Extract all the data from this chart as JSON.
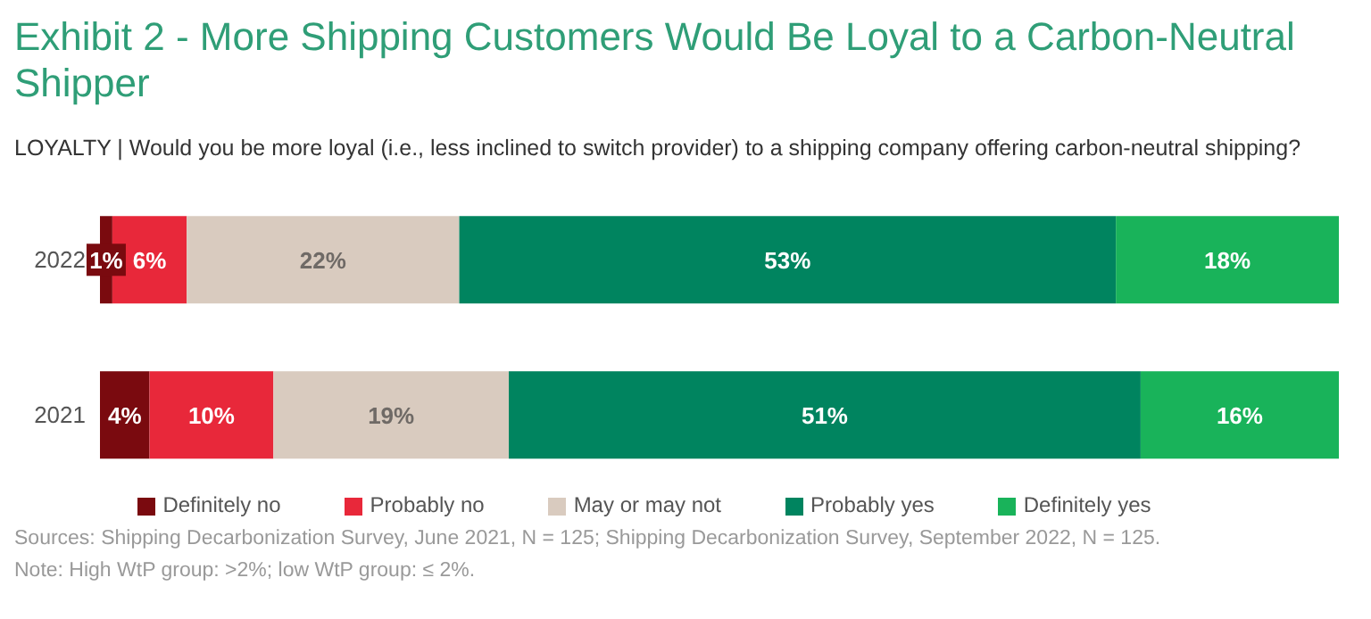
{
  "chart_data": {
    "type": "bar",
    "orientation": "horizontal",
    "stacked": true,
    "title": "Exhibit 2 - More Shipping Customers Would Be Loyal to a Carbon-Neutral Shipper",
    "subtitle": "LOYALTY | Would you be more loyal (i.e., less inclined to switch provider) to a shipping company offering carbon-neutral shipping?",
    "categories": [
      "2022",
      "2021"
    ],
    "series": [
      {
        "name": "Definitely no",
        "color": "#7a0a0f",
        "values": [
          1,
          4
        ],
        "value_labels": [
          "1%",
          "4%"
        ]
      },
      {
        "name": "Probably no",
        "color": "#e8283a",
        "values": [
          6,
          10
        ],
        "value_labels": [
          "6%",
          "10%"
        ]
      },
      {
        "name": "May or may not",
        "color": "#d9cbbf",
        "values": [
          22,
          19
        ],
        "value_labels": [
          "22%",
          "19%"
        ]
      },
      {
        "name": "Probably yes",
        "color": "#00845f",
        "values": [
          53,
          51
        ],
        "value_labels": [
          "53%",
          "51%"
        ]
      },
      {
        "name": "Definitely yes",
        "color": "#19b35a",
        "values": [
          18,
          16
        ],
        "value_labels": [
          "18%",
          "16%"
        ]
      }
    ],
    "xlim": [
      0,
      100
    ],
    "tick_labels": "y",
    "grid": false,
    "legend": "bottom",
    "annotations": [
      "Sources: Shipping Decarbonization Survey, June 2021, N = 125; Shipping Decarbonization Survey, September 2022, N = 125.",
      "Note: High WtP group: >2%; low WtP group: ≤ 2%."
    ]
  }
}
